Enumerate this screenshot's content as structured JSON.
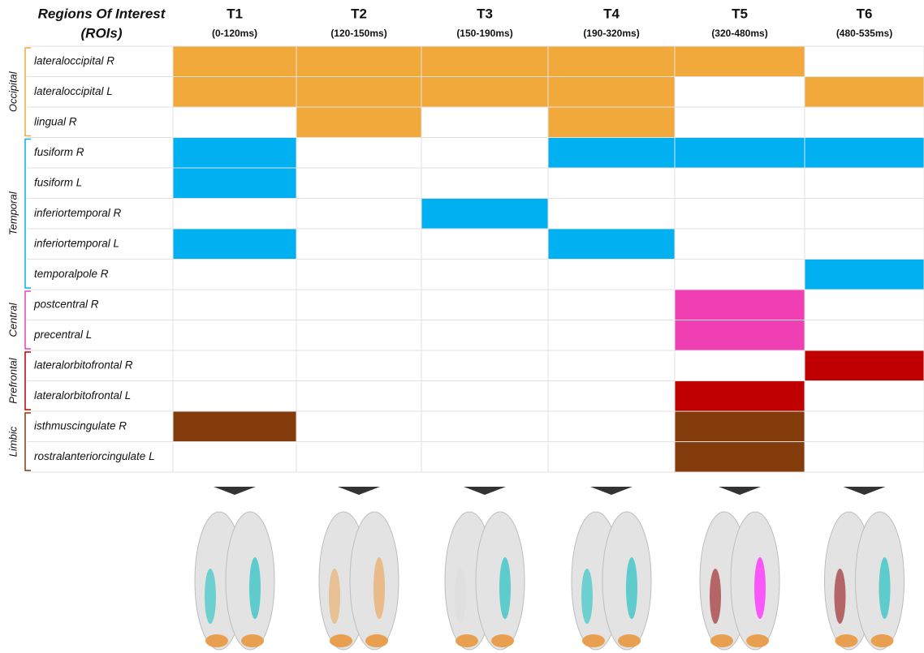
{
  "header": {
    "title": "Regions Of Interest",
    "subtitle": "(ROIs)"
  },
  "columns": [
    {
      "label": "T1",
      "range": "(0-120ms)"
    },
    {
      "label": "T2",
      "range": "(120-150ms)"
    },
    {
      "label": "T3",
      "range": "(150-190ms)"
    },
    {
      "label": "T4",
      "range": "(190-320ms)"
    },
    {
      "label": "T5",
      "range": "(320-480ms)"
    },
    {
      "label": "T6",
      "range": "(480-535ms)"
    }
  ],
  "groups": [
    {
      "name": "Occipital",
      "color": "#f2a93b",
      "rows": [
        {
          "label": "lateraloccipital R",
          "active": [
            true,
            true,
            true,
            true,
            true,
            false
          ]
        },
        {
          "label": "lateraloccipital L",
          "active": [
            true,
            true,
            true,
            true,
            false,
            true
          ]
        },
        {
          "label": "lingual R",
          "active": [
            false,
            true,
            false,
            true,
            false,
            false
          ]
        }
      ]
    },
    {
      "name": "Temporal",
      "color": "#00b0f0",
      "rows": [
        {
          "label": "fusiform R",
          "active": [
            true,
            false,
            false,
            true,
            true,
            true
          ]
        },
        {
          "label": "fusiform L",
          "active": [
            true,
            false,
            false,
            false,
            false,
            false
          ]
        },
        {
          "label": "inferiortemporal R",
          "active": [
            false,
            false,
            true,
            false,
            false,
            false
          ]
        },
        {
          "label": "inferiortemporal L",
          "active": [
            true,
            false,
            false,
            true,
            false,
            false
          ]
        },
        {
          "label": "temporalpole R",
          "active": [
            false,
            false,
            false,
            false,
            false,
            true
          ]
        }
      ]
    },
    {
      "name": "Central",
      "color": "#ef3fb2",
      "rows": [
        {
          "label": "postcentral R",
          "active": [
            false,
            false,
            false,
            false,
            true,
            false
          ]
        },
        {
          "label": "precentral L",
          "active": [
            false,
            false,
            false,
            false,
            true,
            false
          ]
        }
      ]
    },
    {
      "name": "Prefrontal",
      "color": "#c00000",
      "rows": [
        {
          "label": "lateralorbitofrontal R",
          "active": [
            false,
            false,
            false,
            false,
            false,
            true
          ]
        },
        {
          "label": "lateralorbitofrontal L",
          "active": [
            false,
            false,
            false,
            false,
            true,
            false
          ]
        }
      ]
    },
    {
      "name": "Limbic",
      "color": "#843c0c",
      "rows": [
        {
          "label": "isthmuscingulate R",
          "active": [
            true,
            false,
            false,
            false,
            true,
            false
          ]
        },
        {
          "label": "rostralanteriorcingulate L",
          "active": [
            false,
            false,
            false,
            false,
            true,
            false
          ]
        }
      ]
    }
  ]
}
